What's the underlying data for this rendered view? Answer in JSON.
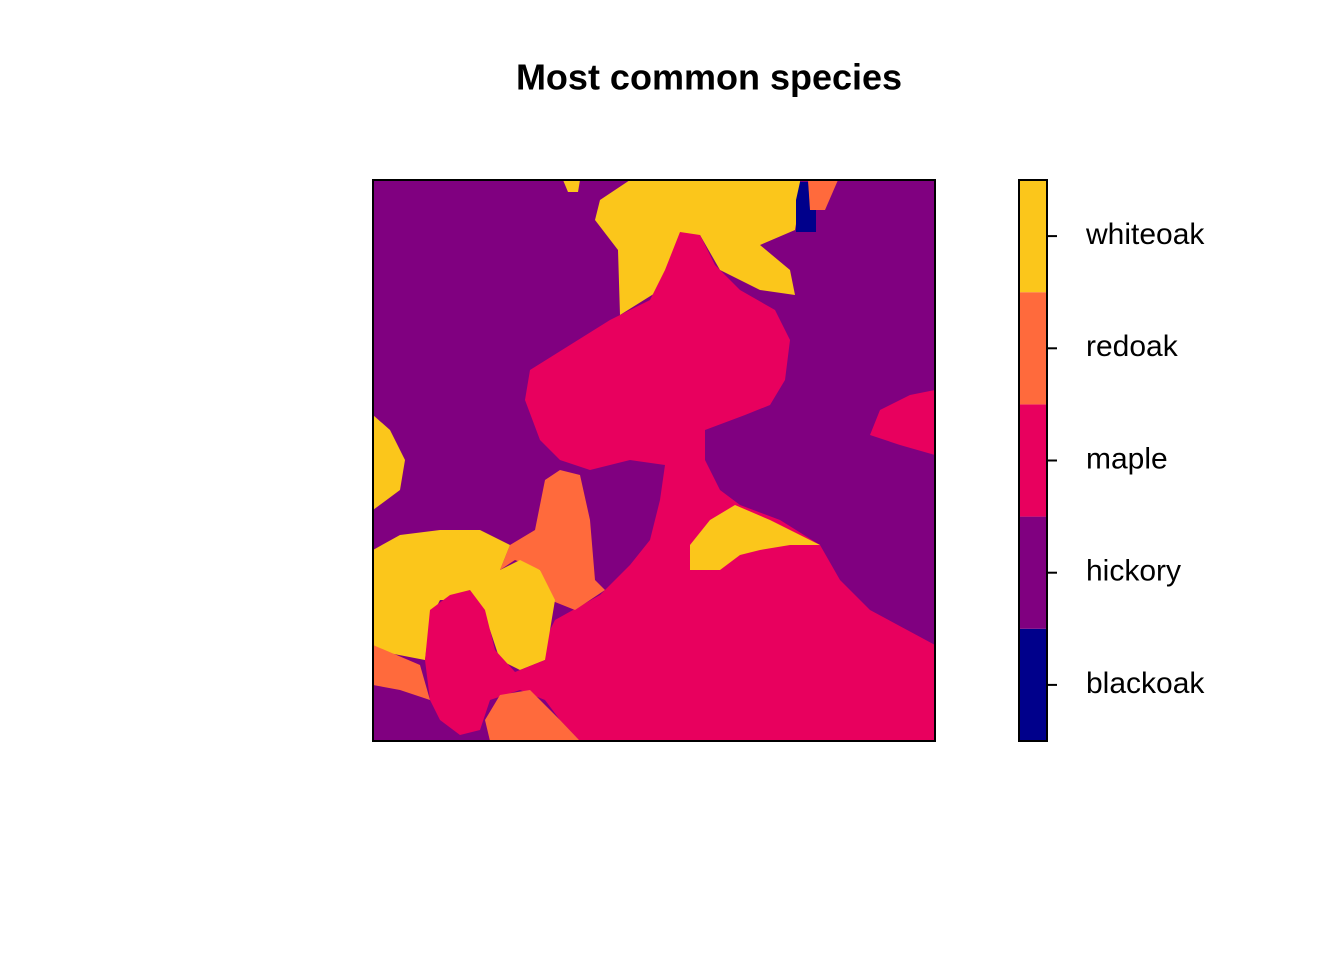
{
  "title": "Most common species",
  "legend": {
    "items": [
      {
        "label": "blackoak",
        "color": "#00008b"
      },
      {
        "label": "hickory",
        "color": "#800080"
      },
      {
        "label": "maple",
        "color": "#e8005e"
      },
      {
        "label": "redoak",
        "color": "#ff6a3c"
      },
      {
        "label": "whiteoak",
        "color": "#fbc61b"
      }
    ]
  }
}
